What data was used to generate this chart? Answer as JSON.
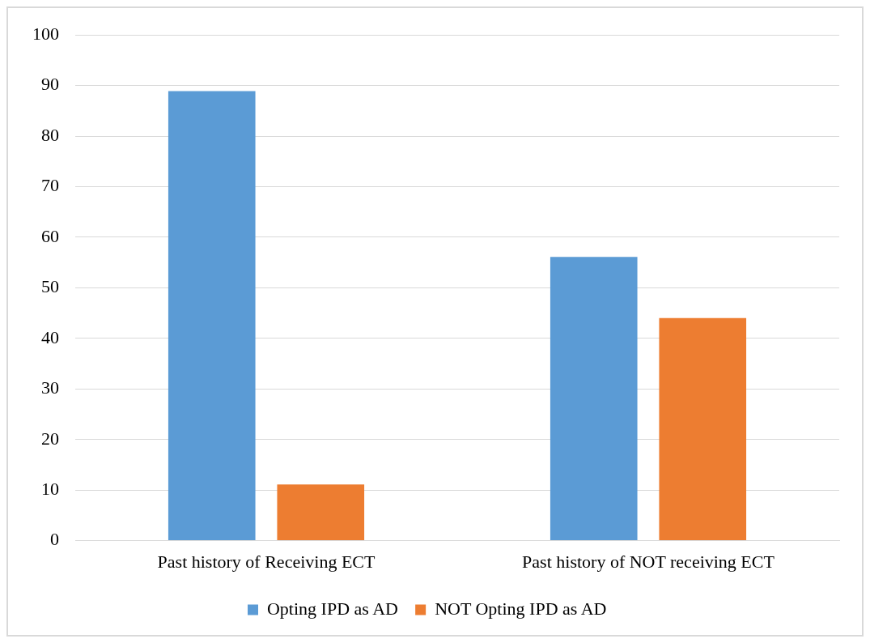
{
  "chart_data": {
    "type": "bar",
    "categories": [
      "Past history of Receiving ECT",
      "Past history of NOT receiving ECT"
    ],
    "series": [
      {
        "name": "Opting IPD as AD",
        "color": "#5b9bd5",
        "values": [
          88.9,
          56.1
        ]
      },
      {
        "name": "NOT Opting IPD as AD",
        "color": "#ed7d31",
        "values": [
          11.1,
          44.0
        ]
      }
    ],
    "ylim": [
      0,
      100
    ],
    "yticks": [
      0,
      10,
      20,
      30,
      40,
      50,
      60,
      70,
      80,
      90,
      100
    ],
    "grid": "y",
    "legend": "bottom"
  }
}
